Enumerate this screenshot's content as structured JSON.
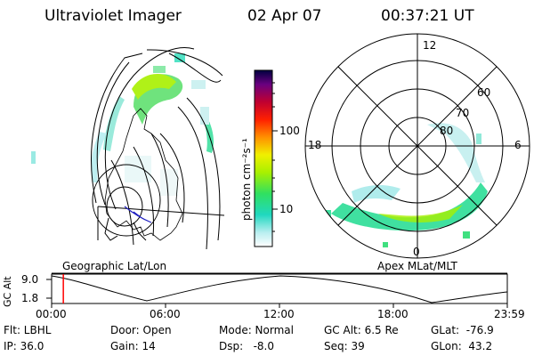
{
  "header": {
    "instrument": "Ultraviolet Imager",
    "date": "02 Apr 07",
    "time": "00:37:21 UT"
  },
  "colorbar": {
    "label": "photon cm⁻²s⁻¹",
    "ticks": [
      "100",
      "10"
    ]
  },
  "polar_plot": {
    "mlt_labels": [
      "12",
      "18",
      "6",
      "0"
    ],
    "lat_labels": [
      "60",
      "70",
      "80"
    ]
  },
  "panel_titles": {
    "left": "Geographic Lat/Lon",
    "right": "Apex MLat/MLT"
  },
  "alt_timeline": {
    "ylabel": "GC Alt",
    "y_ticks": [
      "9.0",
      "1.8"
    ],
    "x_ticks": [
      "00:00",
      "06:00",
      "12:00",
      "18:00",
      "23:59"
    ],
    "marker_time": "00:37",
    "marker_color": "#ff0000"
  },
  "info": {
    "filter": "Flt: LBHL",
    "ip": "IP: 36.0",
    "door": "Door: Open",
    "gain": "Gain: 14",
    "mode": "Mode: Normal",
    "dsp": "Dsp:   -8.0",
    "gc_alt": "GC Alt: 6.5 Re",
    "seq": "Seq: 39",
    "glat": "GLat:  -76.9",
    "glon": "GLon:  43.2"
  }
}
